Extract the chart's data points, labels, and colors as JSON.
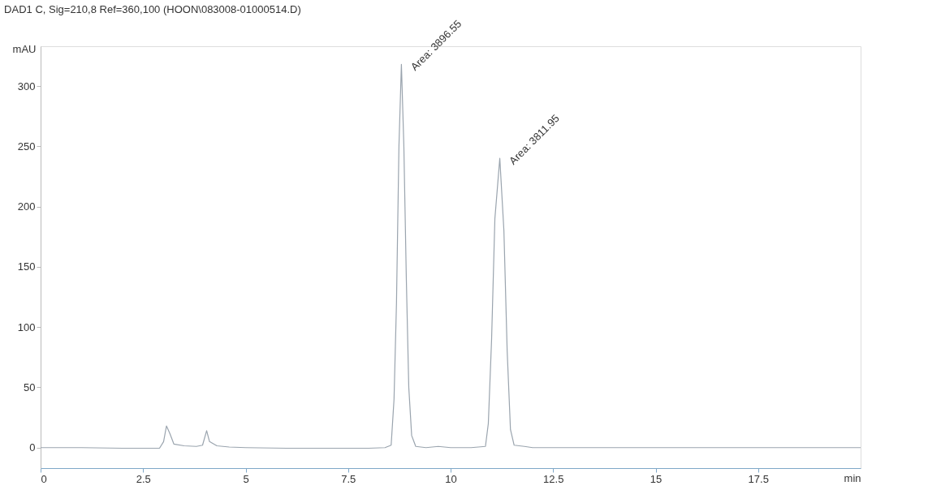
{
  "chart_data": {
    "type": "line",
    "title": "DAD1 C, Sig=210,8 Ref=360,100 (HOON\\083008-01000514.D)",
    "xlabel": "min",
    "ylabel": "mAU",
    "x": [
      0,
      1,
      2,
      2.9,
      3.0,
      3.07,
      3.15,
      3.25,
      3.5,
      3.8,
      3.95,
      4.05,
      4.12,
      4.3,
      4.6,
      5,
      6,
      7,
      8,
      8.4,
      8.55,
      8.62,
      8.68,
      8.74,
      8.8,
      8.86,
      8.92,
      8.98,
      9.05,
      9.15,
      9.4,
      9.7,
      10,
      10.5,
      10.85,
      10.92,
      11.0,
      11.08,
      11.2,
      11.3,
      11.38,
      11.46,
      11.55,
      11.8,
      12,
      14,
      16,
      18,
      20
    ],
    "series": [
      {
        "color": "#9aa4ae",
        "values": [
          0,
          0,
          -0.5,
          -0.5,
          5,
          18,
          12,
          3,
          1.5,
          1,
          2,
          14,
          5,
          1.5,
          0.5,
          0,
          -0.5,
          -0.5,
          -0.5,
          0,
          2,
          40,
          120,
          250,
          318,
          250,
          140,
          50,
          10,
          1,
          0,
          1,
          0,
          0,
          1,
          20,
          90,
          190,
          240,
          180,
          80,
          15,
          2,
          1,
          0,
          0,
          0,
          0,
          0
        ]
      }
    ],
    "xlim": [
      0,
      20
    ],
    "xticks": [
      0,
      2.5,
      5,
      7.5,
      10,
      12.5,
      15,
      17.5
    ],
    "ylim": [
      -17,
      333
    ],
    "yticks": [
      0,
      50,
      100,
      150,
      200,
      250,
      300
    ],
    "annotations": [
      {
        "text": "Area: 3896.55",
        "x": 8.8,
        "y": 318
      },
      {
        "text": "Area: 3811.95",
        "x": 11.2,
        "y": 240
      }
    ],
    "grid": false,
    "legend": false,
    "marker": "none",
    "line_style": "solid"
  }
}
